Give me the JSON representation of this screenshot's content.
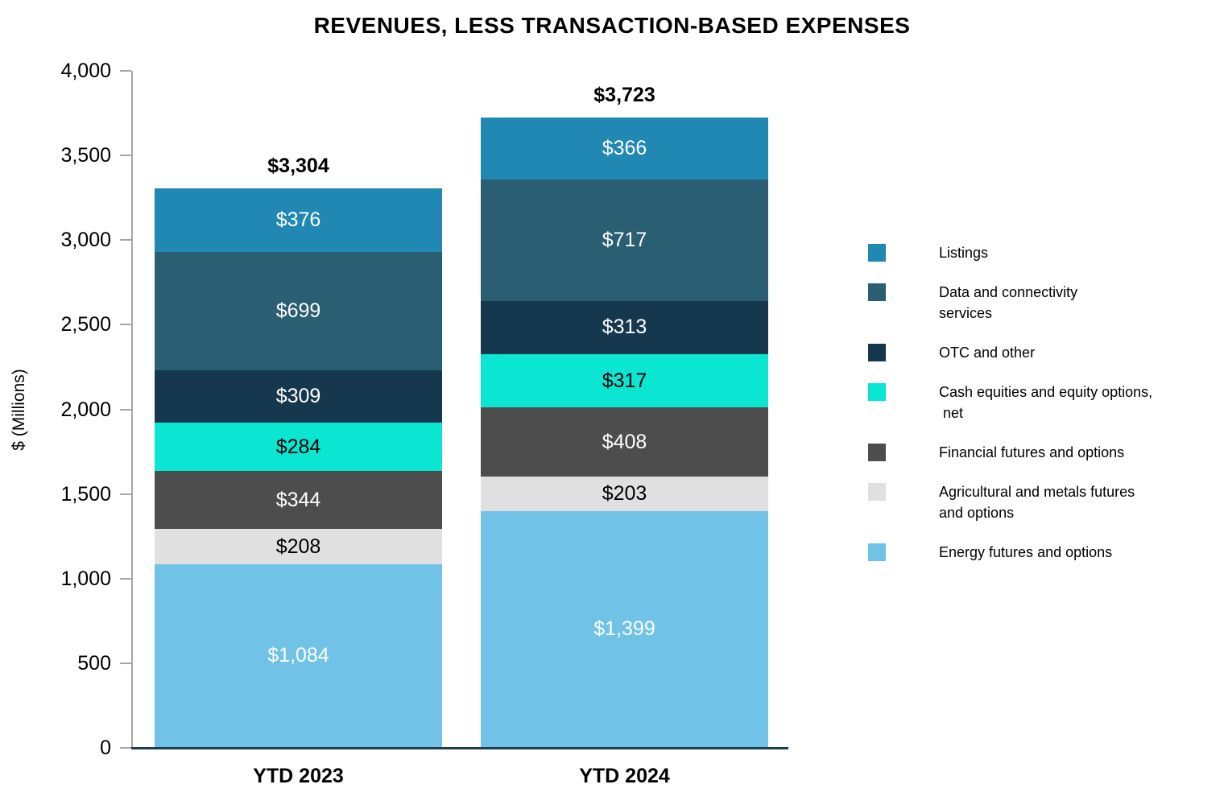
{
  "chart_data": {
    "type": "bar",
    "stacked": true,
    "title": "REVENUES, LESS TRANSACTION-BASED EXPENSES",
    "ylabel": "$ (Millions)",
    "xlabel": "",
    "ylim": [
      0,
      4000
    ],
    "ytick_step": 500,
    "grid": false,
    "legend_position": "right",
    "value_prefix": "$",
    "categories": [
      "YTD 2023",
      "YTD 2024"
    ],
    "totals": [
      3304,
      3723
    ],
    "series": [
      {
        "name": "Listings",
        "legend_lines": [
          "Listings"
        ],
        "color": "#2188B4",
        "label_color": "#FFFFFF",
        "values": [
          376,
          366
        ]
      },
      {
        "name": "Data and connectivity services",
        "legend_lines": [
          "Data and connectivity",
          "services"
        ],
        "color": "#2A5E72",
        "label_color": "#FFFFFF",
        "values": [
          699,
          717
        ]
      },
      {
        "name": "OTC and other",
        "legend_lines": [
          "OTC and other"
        ],
        "color": "#16384E",
        "label_color": "#FFFFFF",
        "values": [
          309,
          313
        ]
      },
      {
        "name": "Cash equities and equity options, net",
        "legend_lines": [
          "Cash equities and equity options,",
          " net"
        ],
        "color": "#0BE6D2",
        "label_color": "#000000",
        "values": [
          284,
          317
        ]
      },
      {
        "name": "Financial futures and options",
        "legend_lines": [
          "Financial futures and options"
        ],
        "color": "#4D4D4D",
        "label_color": "#FFFFFF",
        "values": [
          344,
          408
        ]
      },
      {
        "name": "Agricultural and metals futures and options",
        "legend_lines": [
          "Agricultural and metals futures",
          "and options"
        ],
        "color": "#E0E0E0",
        "label_color": "#000000",
        "values": [
          208,
          203
        ]
      },
      {
        "name": "Energy futures and options",
        "legend_lines": [
          "Energy futures and options"
        ],
        "color": "#70C3E7",
        "label_color": "#FFFFFF",
        "values": [
          1084,
          1399
        ]
      }
    ],
    "axis_color": "#A6A6A6",
    "baseline_color": "#1D3E4F"
  }
}
